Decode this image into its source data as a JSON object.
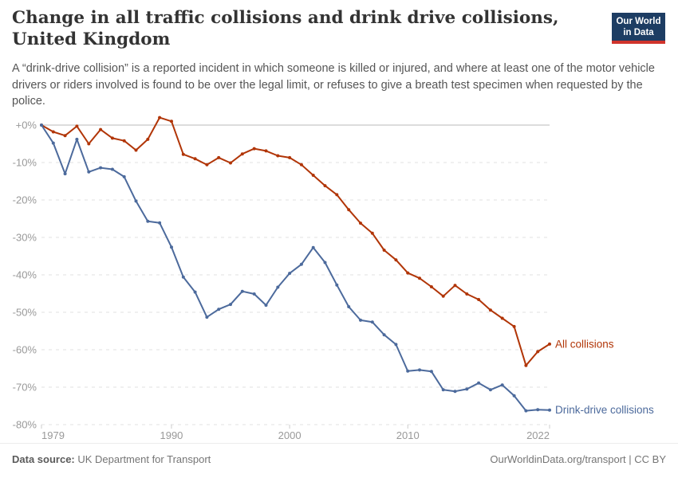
{
  "header": {
    "title": "Change in all traffic collisions and drink drive collisions, United Kingdom",
    "subtitle": "A “drink-drive collision” is a reported incident in which someone is killed or injured, and where at least one of the motor vehicle drivers or riders involved is found to be over the legal limit, or refuses to give a breath test specimen when requested by the police.",
    "logo": {
      "line1": "Our World",
      "line2": "in Data",
      "bg_color": "#1d3d63",
      "bar_color": "#d0342c"
    }
  },
  "chart_data": {
    "type": "line",
    "title": "Change in all traffic collisions and drink drive collisions, United Kingdom",
    "xlabel": "",
    "ylabel": "",
    "x": [
      1979,
      1980,
      1981,
      1982,
      1983,
      1984,
      1985,
      1986,
      1987,
      1988,
      1989,
      1990,
      1991,
      1992,
      1993,
      1994,
      1995,
      1996,
      1997,
      1998,
      1999,
      2000,
      2001,
      2002,
      2003,
      2004,
      2005,
      2006,
      2007,
      2008,
      2009,
      2010,
      2011,
      2012,
      2013,
      2014,
      2015,
      2016,
      2017,
      2018,
      2019,
      2020,
      2021,
      2022
    ],
    "series": [
      {
        "name": "All collisions",
        "color": "#b13507",
        "values": [
          0,
          -1.8,
          -2.8,
          -0.3,
          -5,
          -1.2,
          -3.5,
          -4.2,
          -6.7,
          -3.8,
          2,
          1,
          -7.8,
          -9,
          -10.6,
          -8.7,
          -10.1,
          -7.7,
          -6.3,
          -6.9,
          -8.2,
          -8.7,
          -10.6,
          -13.4,
          -16.2,
          -18.6,
          -22.6,
          -26.2,
          -28.9,
          -33.4,
          -36,
          -39.5,
          -40.9,
          -43.2,
          -45.7,
          -42.8,
          -45.1,
          -46.6,
          -49.4,
          -51.6,
          -53.8,
          -64.2,
          -60.5,
          -58.5
        ]
      },
      {
        "name": "Drink-drive collisions",
        "color": "#4c6a9c",
        "values": [
          0,
          -4.8,
          -13,
          -3.8,
          -12.5,
          -11.4,
          -11.8,
          -13.8,
          -20.3,
          -25.7,
          -26.1,
          -32.6,
          -40.6,
          -44.6,
          -51.3,
          -49.2,
          -47.9,
          -44.4,
          -45.1,
          -48.1,
          -43.3,
          -39.6,
          -37.2,
          -32.7,
          -36.7,
          -42.7,
          -48.5,
          -52.1,
          -52.6,
          -56,
          -58.6,
          -65.7,
          -65.4,
          -65.8,
          -70.7,
          -71.1,
          -70.5,
          -68.9,
          -70.7,
          -69.4,
          -72.3,
          -76.3,
          -76,
          -76.1
        ]
      }
    ],
    "ylim": [
      -80,
      2.5
    ],
    "yticks": {
      "values": [
        0,
        -10,
        -20,
        -30,
        -40,
        -50,
        -60,
        -70,
        -80
      ],
      "labels": [
        "+0%",
        "-10%",
        "-20%",
        "-30%",
        "-40%",
        "-50%",
        "-60%",
        "-70%",
        "-80%"
      ]
    },
    "xticks": [
      1979,
      1990,
      2000,
      2010,
      2022
    ],
    "grid": "horizontal dashed, zero line solid",
    "legend_position": "labels at line ends",
    "style": {
      "grid_color": "#e0e0e0",
      "zero_line_color": "#b8b8b8",
      "tick_color": "#999999",
      "axis_tick_mark_color": "#cccccc"
    }
  },
  "footer": {
    "source_label": "Data source:",
    "source_value": " UK Department for Transport",
    "credit": "OurWorldinData.org/transport | CC BY"
  }
}
